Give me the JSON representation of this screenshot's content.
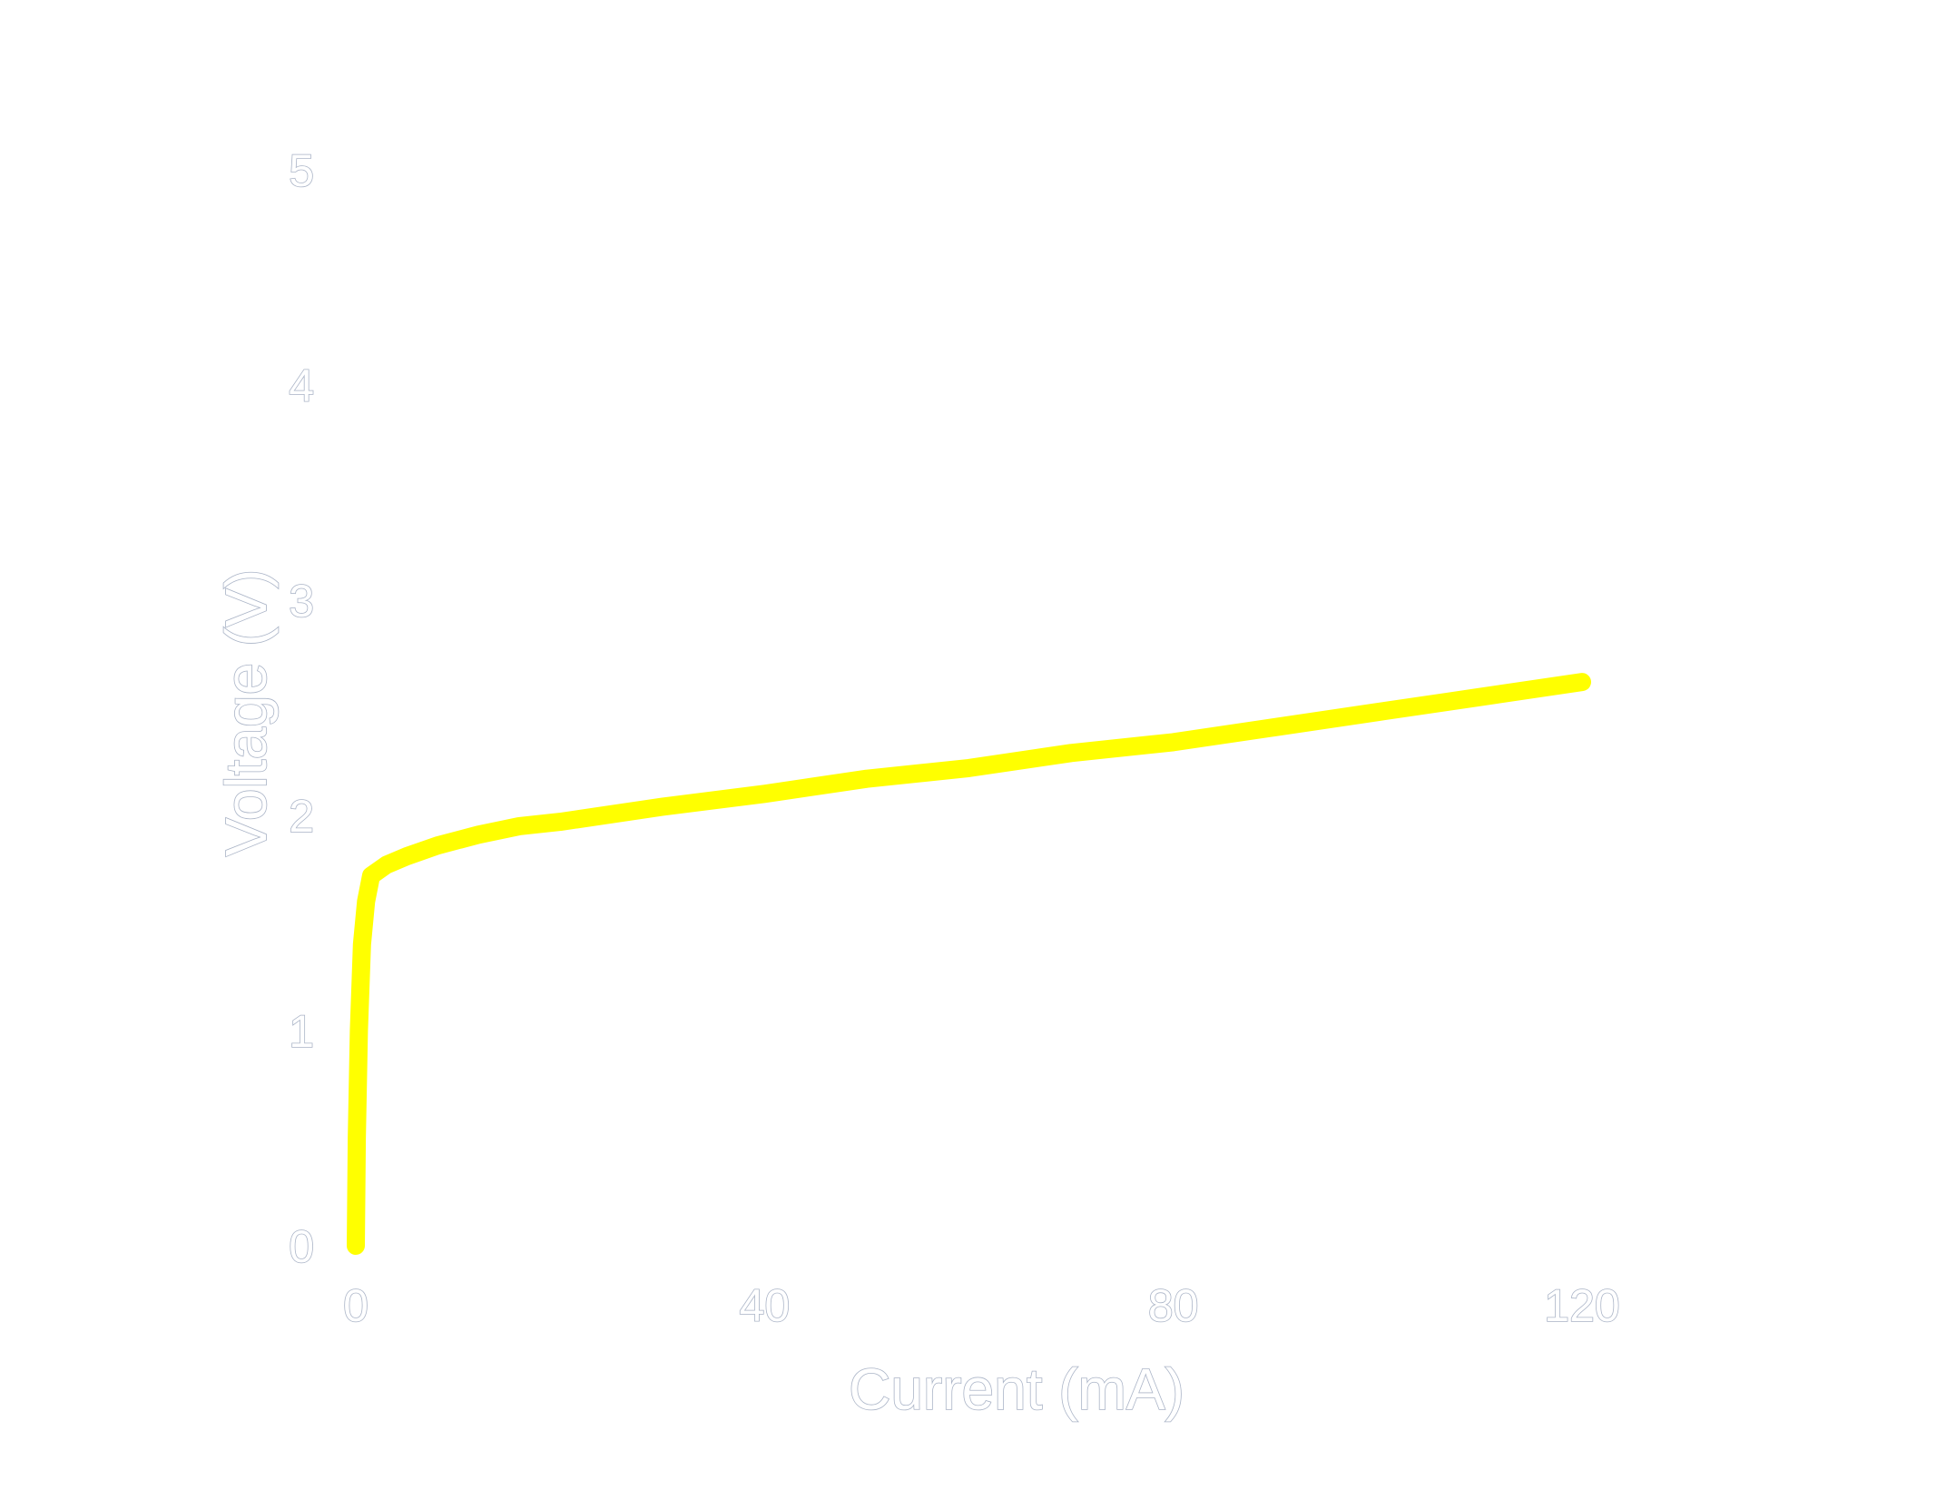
{
  "chart_data": {
    "type": "line",
    "title": "",
    "xlabel": "Current (mA)",
    "ylabel": "Voltage (V)",
    "xlim": [
      0,
      140
    ],
    "ylim": [
      0,
      5
    ],
    "xticks": [
      0,
      40,
      80,
      120
    ],
    "yticks": [
      0,
      1,
      2,
      3,
      4,
      5
    ],
    "grid": false,
    "series": [
      {
        "color": "#ffff00",
        "x": [
          0,
          0.1,
          0.3,
          0.6,
          1.0,
          1.5,
          3,
          5,
          8,
          12,
          16,
          20,
          30,
          40,
          50,
          60,
          70,
          80,
          90,
          100,
          110,
          120
        ],
        "y": [
          0,
          0.5,
          1.0,
          1.4,
          1.6,
          1.72,
          1.77,
          1.81,
          1.86,
          1.91,
          1.95,
          1.97,
          2.04,
          2.1,
          2.17,
          2.22,
          2.29,
          2.34,
          2.41,
          2.48,
          2.55,
          2.62
        ]
      }
    ]
  }
}
